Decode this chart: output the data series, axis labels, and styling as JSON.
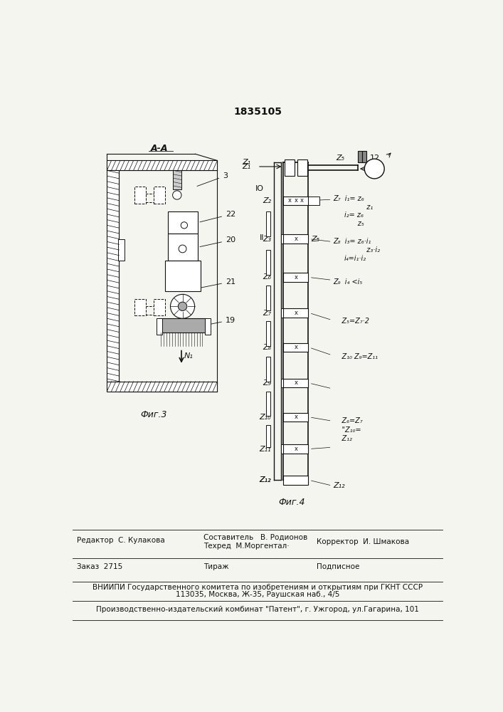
{
  "patent_number": "1835105",
  "bg_color": "#f5f5f0",
  "fig_width": 7.07,
  "fig_height": 10.0,
  "editor_line": "Редактор  С. Кулакова",
  "composer_line1": "Составитель   В. Родионов",
  "composer_line2": "Техред  М.Моргентал·",
  "corrector_line": "Корректор  И. Шмакова",
  "order_line": "Заказ  2715",
  "tirazh_line": "Тираж",
  "podpisnoe_line": "Подписное",
  "vniiipi_line1": "ВНИИПИ Государственного комитета по изобретениям и открытиям при ГКНТ СССР",
  "vniiipi_line2": "113035, Москва, Ж-35, Раушская наб., 4/5",
  "production_line": "Производственно-издательский комбинат \"Патент\", г. Ужгород, ул.Гагарина, 101",
  "fig3_label": "Фиг.3",
  "fig4_label": "Фиг.4",
  "section_label": "А-А"
}
